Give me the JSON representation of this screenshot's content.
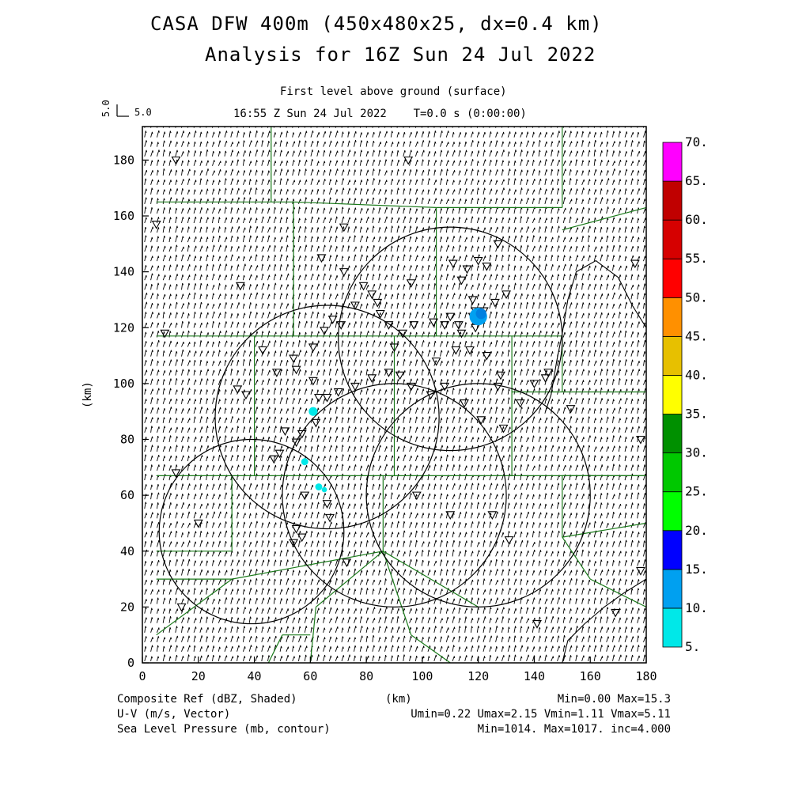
{
  "title_line1": "CASA DFW 400m (450x480x25, dx=0.4 km)",
  "title_line2": "Analysis for 16Z Sun 24 Jul 2022",
  "level_label": "First level above ground (surface)",
  "time_label": "16:55 Z Sun 24 Jul 2022    T=0.0 s (0:00:00)",
  "ref_vector": {
    "value_label": "5.0",
    "side_label": "5.0"
  },
  "x_axis": {
    "label": "(km)",
    "ticks": [
      0,
      20,
      40,
      60,
      80,
      100,
      120,
      140,
      160,
      180
    ],
    "range": [
      0,
      180
    ]
  },
  "y_axis": {
    "label": "(km)",
    "ticks": [
      0,
      20,
      40,
      60,
      80,
      100,
      120,
      140,
      160,
      180
    ],
    "range": [
      0,
      192
    ]
  },
  "colorbar": {
    "labels": [
      "5.",
      "10.",
      "15.",
      "20.",
      "25.",
      "30.",
      "35.",
      "40.",
      "45.",
      "50.",
      "55.",
      "60.",
      "65.",
      "70."
    ],
    "colors": [
      "#00e8e8",
      "#00a0f0",
      "#0000ff",
      "#00ff00",
      "#00c800",
      "#009000",
      "#ffff00",
      "#e7c000",
      "#ff9000",
      "#ff0000",
      "#d60000",
      "#c00000",
      "#ff00ff"
    ]
  },
  "footer": {
    "left": [
      "Composite Ref (dBZ, Shaded)",
      "U-V (m/s, Vector)",
      "Sea Level Pressure (mb, contour)"
    ],
    "center": "(km)",
    "right": [
      "Min=0.00 Max=15.3",
      "Umin=0.22 Umax=2.15 Vmin=1.11 Vmax=5.11",
      "Min=1014. Max=1017. inc=4.000"
    ]
  },
  "map_data": {
    "wind": {
      "u_mean": 0.9,
      "v_mean": 3.6
    },
    "radar_circles_km": [
      {
        "cx": 110,
        "cy": 116,
        "r": 40
      },
      {
        "cx": 66,
        "cy": 88,
        "r": 40
      },
      {
        "cx": 39,
        "cy": 47,
        "r": 33
      },
      {
        "cx": 90,
        "cy": 60,
        "r": 40
      },
      {
        "cx": 120,
        "cy": 60,
        "r": 40
      }
    ],
    "pressure_contours_km": [
      [
        [
          150,
          0
        ],
        [
          152,
          8
        ],
        [
          158,
          14
        ],
        [
          165,
          20
        ],
        [
          172,
          25
        ],
        [
          180,
          30
        ]
      ],
      [
        [
          180,
          120
        ],
        [
          175,
          128
        ],
        [
          170,
          138
        ],
        [
          162,
          144
        ],
        [
          155,
          140
        ],
        [
          152,
          130
        ],
        [
          150,
          118
        ],
        [
          148,
          108
        ],
        [
          146,
          96
        ],
        [
          144,
          90
        ]
      ]
    ],
    "county_lines_km": [
      [
        [
          5,
          117
        ],
        [
          150,
          117
        ]
      ],
      [
        [
          5,
          165
        ],
        [
          46,
          165
        ]
      ],
      [
        [
          46,
          165
        ],
        [
          46,
          192
        ]
      ],
      [
        [
          46,
          165
        ],
        [
          54,
          165
        ]
      ],
      [
        [
          54,
          165
        ],
        [
          54,
          117
        ]
      ],
      [
        [
          54,
          165
        ],
        [
          105,
          163
        ]
      ],
      [
        [
          105,
          163
        ],
        [
          150,
          163
        ]
      ],
      [
        [
          105,
          163
        ],
        [
          105,
          117
        ]
      ],
      [
        [
          150,
          163
        ],
        [
          150,
          192
        ]
      ],
      [
        [
          150,
          155
        ],
        [
          180,
          163
        ]
      ],
      [
        [
          150,
          117
        ],
        [
          150,
          97
        ]
      ],
      [
        [
          150,
          97
        ],
        [
          180,
          97
        ]
      ],
      [
        [
          40,
          117
        ],
        [
          40,
          67
        ]
      ],
      [
        [
          5,
          67
        ],
        [
          180,
          67
        ]
      ],
      [
        [
          90,
          117
        ],
        [
          90,
          67
        ]
      ],
      [
        [
          132,
          117
        ],
        [
          132,
          97
        ]
      ],
      [
        [
          132,
          97
        ],
        [
          150,
          97
        ]
      ],
      [
        [
          132,
          97
        ],
        [
          132,
          67
        ]
      ],
      [
        [
          32,
          67
        ],
        [
          32,
          40
        ]
      ],
      [
        [
          5,
          40
        ],
        [
          32,
          40
        ]
      ],
      [
        [
          86,
          67
        ],
        [
          86,
          40
        ]
      ],
      [
        [
          86,
          40
        ],
        [
          120,
          20
        ]
      ],
      [
        [
          32,
          30
        ],
        [
          86,
          40
        ]
      ],
      [
        [
          150,
          67
        ],
        [
          180,
          67
        ]
      ],
      [
        [
          150,
          67
        ],
        [
          150,
          45
        ]
      ],
      [
        [
          150,
          45
        ],
        [
          180,
          50
        ]
      ],
      [
        [
          150,
          45
        ],
        [
          160,
          30
        ]
      ],
      [
        [
          160,
          30
        ],
        [
          180,
          20
        ]
      ],
      [
        [
          5,
          30
        ],
        [
          32,
          30
        ]
      ],
      [
        [
          5,
          10
        ],
        [
          32,
          30
        ]
      ],
      [
        [
          86,
          40
        ],
        [
          96,
          10
        ]
      ],
      [
        [
          96,
          10
        ],
        [
          110,
          0
        ]
      ],
      [
        [
          60,
          0
        ],
        [
          62,
          20
        ]
      ],
      [
        [
          62,
          20
        ],
        [
          86,
          40
        ]
      ],
      [
        [
          45,
          0
        ],
        [
          50,
          10
        ]
      ],
      [
        [
          50,
          10
        ],
        [
          60,
          10
        ]
      ]
    ],
    "station_markers_km": [
      [
        12,
        180
      ],
      [
        95,
        180
      ],
      [
        5,
        157
      ],
      [
        72,
        156
      ],
      [
        64,
        145
      ],
      [
        72,
        140
      ],
      [
        35,
        135
      ],
      [
        96,
        136
      ],
      [
        111,
        143
      ],
      [
        116,
        141
      ],
      [
        120,
        144
      ],
      [
        123,
        142
      ],
      [
        127,
        150
      ],
      [
        114,
        137
      ],
      [
        118,
        130
      ],
      [
        122,
        126
      ],
      [
        126,
        129
      ],
      [
        130,
        132
      ],
      [
        119,
        120
      ],
      [
        119,
        126
      ],
      [
        118,
        124
      ],
      [
        114,
        118
      ],
      [
        113,
        121
      ],
      [
        110,
        124
      ],
      [
        108,
        121
      ],
      [
        104,
        122
      ],
      [
        97,
        121
      ],
      [
        93,
        118
      ],
      [
        90,
        113
      ],
      [
        88,
        121
      ],
      [
        85,
        125
      ],
      [
        84,
        129
      ],
      [
        82,
        132
      ],
      [
        79,
        135
      ],
      [
        76,
        128
      ],
      [
        71,
        121
      ],
      [
        68,
        123
      ],
      [
        65,
        119
      ],
      [
        61,
        113
      ],
      [
        54,
        109
      ],
      [
        48,
        104
      ],
      [
        43,
        112
      ],
      [
        37,
        96
      ],
      [
        34,
        98
      ],
      [
        55,
        105
      ],
      [
        61,
        101
      ],
      [
        63,
        95
      ],
      [
        66,
        95
      ],
      [
        70,
        97
      ],
      [
        76,
        99
      ],
      [
        82,
        102
      ],
      [
        88,
        104
      ],
      [
        92,
        103
      ],
      [
        96,
        99
      ],
      [
        103,
        96
      ],
      [
        108,
        99
      ],
      [
        115,
        93
      ],
      [
        121,
        87
      ],
      [
        129,
        84
      ],
      [
        135,
        93
      ],
      [
        140,
        100
      ],
      [
        144,
        102
      ],
      [
        127,
        99
      ],
      [
        128,
        103
      ],
      [
        123,
        110
      ],
      [
        117,
        112
      ],
      [
        112,
        112
      ],
      [
        105,
        108
      ],
      [
        62,
        86
      ],
      [
        57,
        82
      ],
      [
        55,
        79
      ],
      [
        51,
        83
      ],
      [
        49,
        75
      ],
      [
        47,
        73
      ],
      [
        66,
        57
      ],
      [
        67,
        52
      ],
      [
        55,
        48
      ],
      [
        58,
        60
      ],
      [
        57,
        45
      ],
      [
        54,
        43
      ],
      [
        73,
        36
      ],
      [
        98,
        60
      ],
      [
        110,
        53
      ],
      [
        125,
        53
      ],
      [
        131,
        44
      ],
      [
        141,
        14
      ],
      [
        145,
        104
      ],
      [
        153,
        91
      ],
      [
        169,
        18
      ],
      [
        178,
        33
      ],
      [
        176,
        143
      ],
      [
        8,
        118
      ],
      [
        12,
        68
      ],
      [
        20,
        50
      ],
      [
        14,
        20
      ],
      [
        178,
        80
      ]
    ],
    "echoes_km": [
      {
        "x": 120,
        "y": 124,
        "r": 5,
        "color": "#00a0f0"
      },
      {
        "x": 121,
        "y": 125,
        "r": 3,
        "color": "#0080e0"
      },
      {
        "x": 61,
        "y": 90,
        "r": 2.5,
        "color": "#00e8e8"
      },
      {
        "x": 58,
        "y": 72,
        "r": 2,
        "color": "#00e8e8"
      },
      {
        "x": 63,
        "y": 63,
        "r": 2,
        "color": "#00e8e8"
      },
      {
        "x": 65,
        "y": 62,
        "r": 1.5,
        "color": "#00e8e8"
      }
    ]
  }
}
